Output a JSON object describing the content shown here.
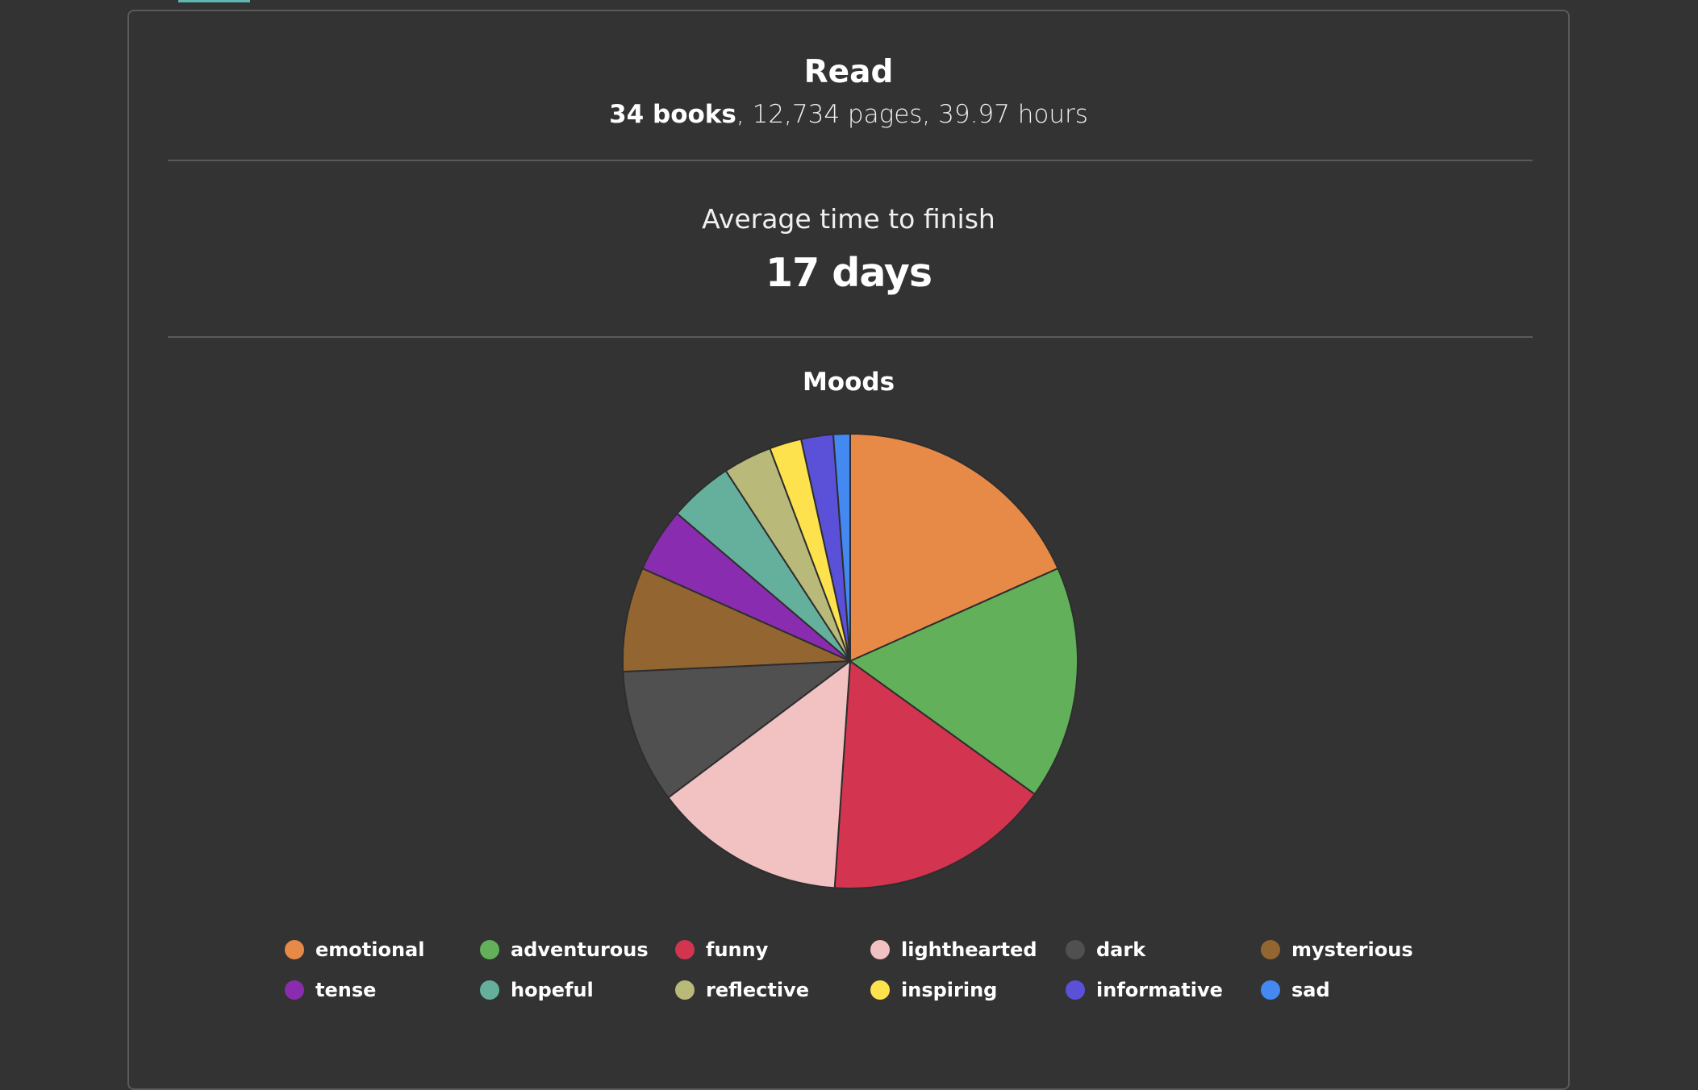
{
  "read": {
    "title": "Read",
    "books": "34 books",
    "details": ", 12,734 pages, 39.97 hours"
  },
  "average": {
    "label": "Average time to finish",
    "value": "17 days"
  },
  "chart_data": {
    "type": "pie",
    "title": "Moods",
    "legend_position": "bottom",
    "categories": [
      "emotional",
      "adventurous",
      "funny",
      "lighthearted",
      "dark",
      "mysterious",
      "tense",
      "hopeful",
      "reflective",
      "inspiring",
      "informative",
      "sad"
    ],
    "values": [
      18.5,
      16.8,
      16.3,
      13.8,
      9.6,
      7.5,
      4.6,
      4.6,
      3.5,
      2.3,
      2.3,
      1.2
    ],
    "colors": [
      "#e88a47",
      "#62b05a",
      "#d3344f",
      "#f2c2c2",
      "#505050",
      "#936631",
      "#8a2caf",
      "#64b09c",
      "#b9b97a",
      "#fde24e",
      "#5b50d8",
      "#4488f2"
    ]
  }
}
